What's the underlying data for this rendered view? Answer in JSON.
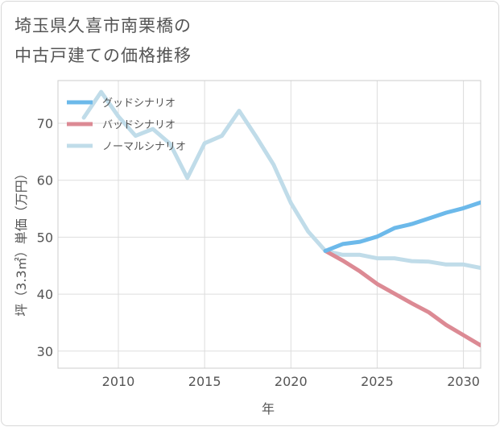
{
  "title_lines": [
    "埼玉県久喜市南栗橋の",
    "中古戸建ての価格推移"
  ],
  "chart_data": {
    "type": "line",
    "title": "埼玉県久喜市南栗橋の中古戸建ての価格推移",
    "xlabel": "年",
    "ylabel": "坪（3.3㎡）単価（万円）",
    "xlim": [
      2006.5,
      2031
    ],
    "ylim": [
      27,
      77.5
    ],
    "xticks": [
      2010,
      2015,
      2020,
      2025,
      2030
    ],
    "yticks": [
      30,
      40,
      50,
      60,
      70
    ],
    "grid": true,
    "legend_position": "top-left",
    "series": [
      {
        "name": "グッドシナリオ",
        "color": "#6cb9ea",
        "x": [
          2022,
          2023,
          2024,
          2025,
          2026,
          2027,
          2028,
          2029,
          2030,
          2031
        ],
        "y": [
          47.6,
          48.8,
          49.2,
          50.1,
          51.6,
          52.3,
          53.3,
          54.3,
          55.1,
          56.1
        ]
      },
      {
        "name": "バッドシナリオ",
        "color": "#dc8a94",
        "x": [
          2022,
          2023,
          2024,
          2025,
          2026,
          2027,
          2028,
          2029,
          2030,
          2031
        ],
        "y": [
          47.6,
          45.9,
          44.0,
          41.8,
          40.1,
          38.4,
          36.8,
          34.6,
          32.8,
          31.0
        ]
      },
      {
        "name": "ノーマルシナリオ",
        "color": "#c0dce9",
        "x": [
          2008,
          2009,
          2010,
          2011,
          2012,
          2013,
          2014,
          2015,
          2016,
          2017,
          2018,
          2019,
          2020,
          2021,
          2022,
          2023,
          2024,
          2025,
          2026,
          2027,
          2028,
          2029,
          2030,
          2031
        ],
        "y": [
          71.0,
          75.5,
          71.2,
          67.8,
          69.0,
          66.4,
          60.4,
          66.5,
          67.8,
          72.2,
          67.6,
          62.7,
          56.0,
          51.0,
          47.6,
          46.9,
          46.9,
          46.3,
          46.3,
          45.8,
          45.7,
          45.2,
          45.2,
          44.6
        ]
      }
    ]
  }
}
